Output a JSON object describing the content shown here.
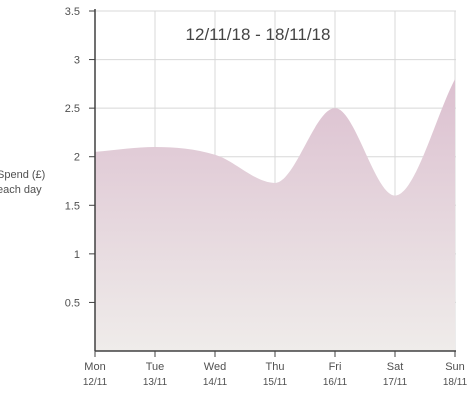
{
  "chart_data": {
    "type": "area",
    "title": "12/11/18 - 18/11/18",
    "xlabel": "",
    "ylabel_lines": [
      "Spend (£)",
      "each day"
    ],
    "categories": [
      {
        "day": "Mon",
        "date": "12/11"
      },
      {
        "day": "Tue",
        "date": "13/11"
      },
      {
        "day": "Wed",
        "date": "14/11"
      },
      {
        "day": "Thu",
        "date": "15/11"
      },
      {
        "day": "Fri",
        "date": "16/11"
      },
      {
        "day": "Sat",
        "date": "17/11"
      },
      {
        "day": "Sun",
        "date": "18/11"
      }
    ],
    "values": [
      2.05,
      2.1,
      2.02,
      1.73,
      2.5,
      1.6,
      2.8
    ],
    "ylim": [
      0,
      3.5
    ],
    "yticks": [
      "0.5",
      "1",
      "1.5",
      "2",
      "2.5",
      "3",
      "3.5"
    ],
    "grid": true,
    "legend": "none",
    "colors": {
      "fill_top": "#dcc0d0",
      "fill_bottom": "#efecea",
      "grid": "#d8d8d8",
      "axis": "#404040",
      "text": "#505050",
      "title": "#444444"
    }
  }
}
